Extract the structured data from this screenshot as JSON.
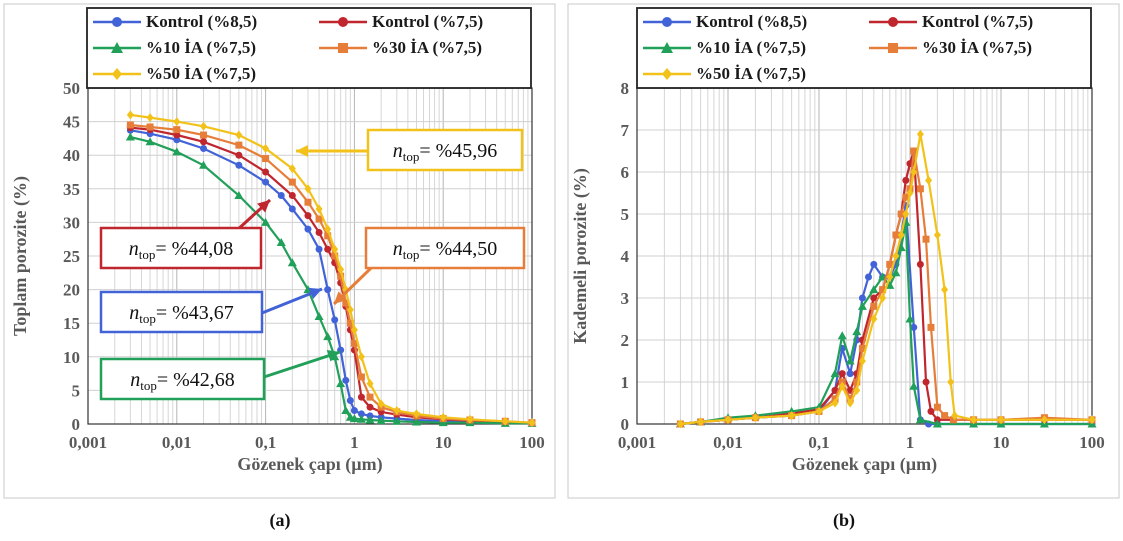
{
  "captions": [
    "(a)",
    "(b)"
  ],
  "legend": [
    "Kontrol (%8,5)",
    "Kontrol (%7,5)",
    "%10 İA (%7,5)",
    "%30 İA (%7,5)",
    "%50 İA (%7,5)"
  ],
  "colors": {
    "kontrol85": "#4263d8",
    "kontrol75": "#c0262d",
    "ia10": "#21a05a",
    "ia30": "#e67e3a",
    "ia50": "#f2c21b"
  },
  "annotations": [
    {
      "text": "n",
      "sub": "top",
      "value": "= %45,96",
      "color": "#f2c21b"
    },
    {
      "text": "n",
      "sub": "top",
      "value": "= %44,08",
      "color": "#c0262d"
    },
    {
      "text": "n",
      "sub": "top",
      "value": "= %44,50",
      "color": "#e67e3a"
    },
    {
      "text": "n",
      "sub": "top",
      "value": "= %43,67",
      "color": "#4263d8"
    },
    {
      "text": "n",
      "sub": "top",
      "value": "= %42,68",
      "color": "#21a05a"
    }
  ],
  "chart_data": [
    {
      "type": "scatter",
      "xlabel": "Gözenek çapı (µm)",
      "ylabel": "Toplam porozite (%)",
      "xscale": "log",
      "xlim": [
        0.001,
        100
      ],
      "ylim": [
        0,
        50
      ],
      "xticks": [
        "0,001",
        "0,01",
        "0,1",
        "1",
        "10",
        "100"
      ],
      "yticks": [
        "0",
        "5",
        "10",
        "15",
        "20",
        "25",
        "30",
        "35",
        "40",
        "45",
        "50"
      ],
      "grid": true,
      "series": [
        {
          "name": "Kontrol (%8,5)",
          "color": "#4263d8",
          "marker": "circle",
          "x": [
            0.003,
            0.005,
            0.01,
            0.02,
            0.05,
            0.1,
            0.15,
            0.2,
            0.3,
            0.4,
            0.5,
            0.6,
            0.7,
            0.8,
            0.9,
            1,
            1.2,
            1.5,
            2,
            3,
            5,
            10,
            20,
            50,
            100
          ],
          "y": [
            43.7,
            43.2,
            42.3,
            41,
            38.5,
            36,
            34,
            32,
            29,
            26,
            20,
            15.5,
            11,
            6.5,
            3.5,
            2,
            1.5,
            1.2,
            1,
            0.8,
            0.6,
            0.4,
            0.3,
            0.2,
            0.1
          ]
        },
        {
          "name": "Kontrol (%7,5)",
          "color": "#c0262d",
          "marker": "circle",
          "x": [
            0.003,
            0.005,
            0.01,
            0.02,
            0.05,
            0.1,
            0.2,
            0.3,
            0.4,
            0.5,
            0.6,
            0.7,
            0.8,
            0.9,
            1,
            1.2,
            1.5,
            2,
            3,
            5,
            10,
            20,
            50,
            100
          ],
          "y": [
            44.1,
            43.8,
            43,
            42,
            40,
            37.5,
            34,
            31,
            28.5,
            26,
            24,
            21,
            17.5,
            14,
            11,
            4,
            2.5,
            1.8,
            1.4,
            1,
            0.7,
            0.5,
            0.3,
            0.1
          ]
        },
        {
          "name": "%10 İA (%7,5)",
          "color": "#21a05a",
          "marker": "triangle",
          "x": [
            0.003,
            0.005,
            0.01,
            0.02,
            0.05,
            0.1,
            0.15,
            0.2,
            0.3,
            0.4,
            0.5,
            0.6,
            0.7,
            0.8,
            0.9,
            1,
            1.2,
            1.5,
            2,
            3,
            5,
            10,
            20,
            50,
            100
          ],
          "y": [
            42.7,
            42,
            40.5,
            38.5,
            34,
            30,
            27,
            24,
            20,
            16,
            13,
            10,
            6,
            2,
            1,
            0.8,
            0.7,
            0.6,
            0.5,
            0.4,
            0.3,
            0.2,
            0.2,
            0.1,
            0.1
          ]
        },
        {
          "name": "%30 İA (%7,5)",
          "color": "#e67e3a",
          "marker": "square",
          "x": [
            0.003,
            0.005,
            0.01,
            0.02,
            0.05,
            0.1,
            0.2,
            0.3,
            0.4,
            0.5,
            0.6,
            0.7,
            0.8,
            0.9,
            1,
            1.2,
            1.5,
            2,
            3,
            5,
            10,
            20,
            50,
            100
          ],
          "y": [
            44.5,
            44.2,
            43.8,
            43,
            41.5,
            39.5,
            36,
            33,
            30.5,
            28,
            25,
            22,
            18,
            15,
            12,
            7,
            4,
            2.5,
            1.8,
            1.2,
            0.8,
            0.6,
            0.4,
            0.2
          ]
        },
        {
          "name": "%50 İA (%7,5)",
          "color": "#f2c21b",
          "marker": "diamond",
          "x": [
            0.003,
            0.005,
            0.01,
            0.02,
            0.05,
            0.1,
            0.2,
            0.3,
            0.4,
            0.5,
            0.6,
            0.7,
            0.8,
            0.9,
            1,
            1.2,
            1.5,
            2,
            3,
            5,
            10,
            20,
            50,
            100
          ],
          "y": [
            46,
            45.6,
            45,
            44.3,
            43,
            41,
            38,
            35,
            32,
            29,
            26,
            23,
            20,
            17,
            14,
            10,
            6,
            3,
            2,
            1.5,
            1,
            0.7,
            0.4,
            0.2
          ]
        }
      ]
    },
    {
      "type": "line",
      "xlabel": "Gözenek çapı (µm)",
      "ylabel": "Kademeli porozite (%)",
      "xscale": "log",
      "xlim": [
        0.001,
        100
      ],
      "ylim": [
        0,
        8
      ],
      "xticks": [
        "0,001",
        "0,01",
        "0,1",
        "1",
        "10",
        "100"
      ],
      "yticks": [
        "0",
        "1",
        "2",
        "3",
        "4",
        "5",
        "6",
        "7",
        "8"
      ],
      "grid": true,
      "series": [
        {
          "name": "Kontrol (%8,5)",
          "color": "#4263d8",
          "marker": "circle",
          "x": [
            0.003,
            0.005,
            0.01,
            0.02,
            0.05,
            0.1,
            0.15,
            0.18,
            0.22,
            0.26,
            0.3,
            0.35,
            0.4,
            0.5,
            0.6,
            0.7,
            0.8,
            0.9,
            1.1,
            1.3,
            1.6,
            2,
            5,
            10,
            30,
            100
          ],
          "y": [
            0,
            0.05,
            0.1,
            0.15,
            0.2,
            0.3,
            0.8,
            1.8,
            1.2,
            2,
            3,
            3.5,
            3.8,
            3.5,
            3.5,
            3.8,
            4.5,
            5.2,
            2.3,
            0.1,
            0,
            0,
            0,
            0,
            0,
            0
          ]
        },
        {
          "name": "Kontrol (%7,5)",
          "color": "#c0262d",
          "marker": "circle",
          "x": [
            0.003,
            0.005,
            0.01,
            0.02,
            0.05,
            0.1,
            0.15,
            0.18,
            0.22,
            0.26,
            0.3,
            0.4,
            0.5,
            0.6,
            0.7,
            0.8,
            0.9,
            1,
            1.1,
            1.3,
            1.5,
            1.7,
            2,
            3,
            5,
            10,
            30,
            100
          ],
          "y": [
            0,
            0.05,
            0.1,
            0.15,
            0.25,
            0.35,
            0.8,
            1.2,
            0.8,
            1.2,
            2,
            3,
            3.2,
            3.8,
            4.5,
            5,
            5.8,
            6.2,
            6.5,
            3.8,
            1,
            0.3,
            0.1,
            0.1,
            0.1,
            0.1,
            0.1,
            0.1
          ]
        },
        {
          "name": "%10 İA (%7,5)",
          "color": "#21a05a",
          "marker": "triangle",
          "x": [
            0.003,
            0.005,
            0.01,
            0.02,
            0.05,
            0.1,
            0.15,
            0.18,
            0.22,
            0.26,
            0.3,
            0.4,
            0.5,
            0.6,
            0.7,
            0.8,
            0.9,
            1,
            1.1,
            1.3,
            2,
            5,
            10,
            30,
            100
          ],
          "y": [
            0,
            0.05,
            0.15,
            0.2,
            0.3,
            0.4,
            1.2,
            2.1,
            1.5,
            2.2,
            2.8,
            3.2,
            3.5,
            3.3,
            3.6,
            4.2,
            4.8,
            2.5,
            0.9,
            0.1,
            0,
            0,
            0,
            0,
            0
          ]
        },
        {
          "name": "%30 İA (%7,5)",
          "color": "#e67e3a",
          "marker": "square",
          "x": [
            0.003,
            0.005,
            0.01,
            0.02,
            0.05,
            0.1,
            0.15,
            0.18,
            0.22,
            0.26,
            0.3,
            0.4,
            0.5,
            0.6,
            0.7,
            0.8,
            0.9,
            1,
            1.1,
            1.3,
            1.5,
            1.7,
            2,
            2.4,
            3,
            5,
            10,
            30,
            100
          ],
          "y": [
            0,
            0.05,
            0.1,
            0.15,
            0.2,
            0.3,
            0.6,
            1,
            0.6,
            1,
            1.8,
            2.8,
            3.2,
            3.8,
            4.5,
            5,
            5.4,
            5.6,
            6.5,
            5.6,
            4.4,
            2.3,
            0.4,
            0.2,
            0.1,
            0.1,
            0.1,
            0.15,
            0.1
          ]
        },
        {
          "name": "%50 İA (%7,5)",
          "color": "#f2c21b",
          "marker": "diamond",
          "x": [
            0.003,
            0.005,
            0.01,
            0.02,
            0.05,
            0.1,
            0.15,
            0.18,
            0.22,
            0.26,
            0.3,
            0.4,
            0.5,
            0.6,
            0.7,
            0.8,
            0.9,
            1,
            1.1,
            1.3,
            1.6,
            2,
            2.4,
            2.8,
            3.1,
            5,
            10,
            30,
            100
          ],
          "y": [
            0,
            0.05,
            0.1,
            0.15,
            0.2,
            0.3,
            0.5,
            0.9,
            0.5,
            0.8,
            1.5,
            2.5,
            3,
            3.5,
            4,
            4.5,
            5,
            5.5,
            6,
            6.9,
            5.8,
            4.5,
            3.2,
            1,
            0.2,
            0.1,
            0.1,
            0.1,
            0.1
          ]
        }
      ]
    }
  ]
}
